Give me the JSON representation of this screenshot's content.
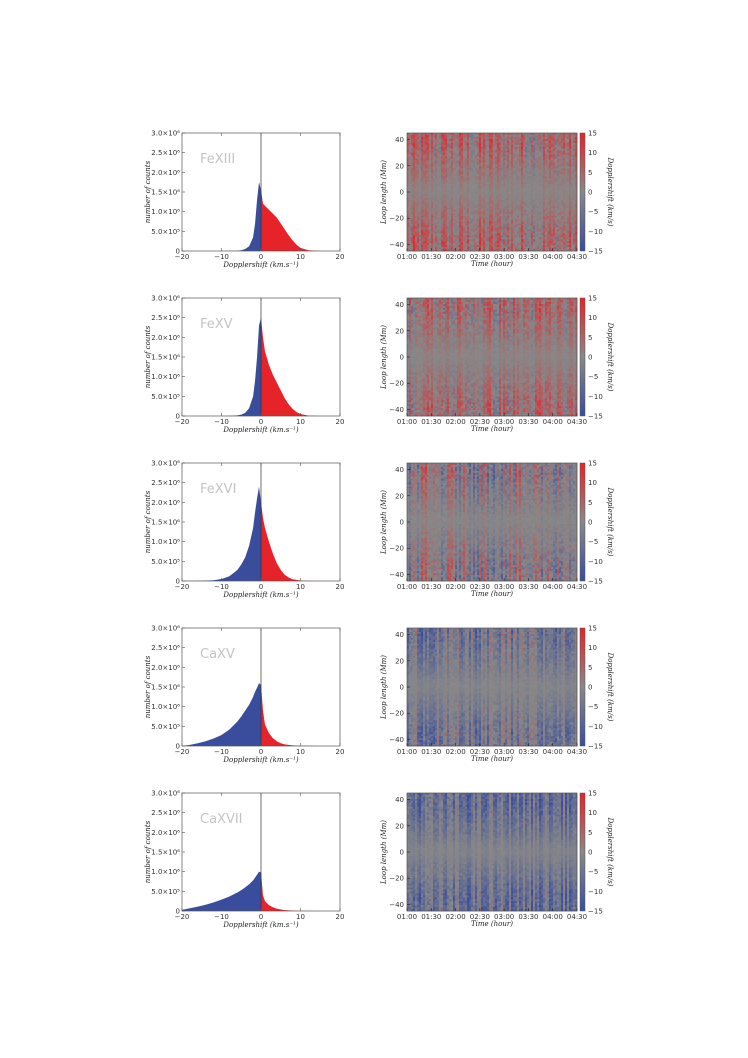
{
  "colors": {
    "blue": "#3a4d9c",
    "red": "#e52329",
    "gray": "#888888",
    "axis": "#555555"
  },
  "hist_common": {
    "xlabel": "Dopplershift (km.s⁻¹)",
    "ylabel": "number of counts",
    "xlim": [
      -20,
      20
    ],
    "ylim": [
      0,
      3000000
    ],
    "xticks": [
      "−20",
      "−10",
      "0",
      "10",
      "20"
    ],
    "yticks": [
      "0",
      "5.0×10⁵",
      "1.0×10⁶",
      "1.5×10⁶",
      "2.0×10⁶",
      "2.5×10⁶",
      "3.0×10⁶"
    ]
  },
  "map_common": {
    "xlabel": "Time (hour)",
    "ylabel": "Loop length (Mm)",
    "colorbar_label": "Dopplershift (km/s)",
    "xticks": [
      "01:00",
      "01:30",
      "02:00",
      "02:30",
      "03:00",
      "03:30",
      "04:00",
      "04:30"
    ],
    "yticks": [
      "40",
      "20",
      "0",
      "−20",
      "−40"
    ],
    "cbar_ticks": [
      "15",
      "10",
      "5",
      "0",
      "−5",
      "−10",
      "−15"
    ],
    "ylim": [
      -45,
      45
    ],
    "clim": [
      -15,
      15
    ]
  },
  "chart_data": [
    {
      "type": "area",
      "name": "FeXIII",
      "peak_x": -0.5,
      "peak": 1750000,
      "x": [
        -20,
        -15,
        -10,
        -8,
        -6,
        -5,
        -4,
        -3,
        -2,
        -1.5,
        -1,
        -0.5,
        0,
        0.5,
        1,
        2,
        3,
        4,
        5,
        6,
        7,
        8,
        9,
        10,
        12,
        15,
        20
      ],
      "counts": [
        0,
        0,
        0,
        2000,
        8000,
        20000,
        50000,
        120000,
        350000,
        700000,
        1300000,
        1750000,
        1550000,
        1200000,
        1150000,
        1050000,
        950000,
        850000,
        700000,
        550000,
        400000,
        270000,
        160000,
        80000,
        20000,
        0,
        0
      ]
    },
    {
      "type": "area",
      "name": "FeXV",
      "peak_x": -0.3,
      "peak": 2550000,
      "x": [
        -20,
        -15,
        -10,
        -8,
        -6,
        -5,
        -4,
        -3,
        -2,
        -1.5,
        -1,
        -0.5,
        0,
        0.5,
        1,
        2,
        3,
        4,
        5,
        6,
        7,
        8,
        9,
        10,
        12,
        15,
        20
      ],
      "counts": [
        0,
        0,
        0,
        3000,
        15000,
        35000,
        80000,
        200000,
        500000,
        900000,
        1500000,
        2300000,
        2500000,
        2000000,
        1650000,
        1300000,
        1050000,
        850000,
        650000,
        450000,
        300000,
        180000,
        100000,
        50000,
        10000,
        0,
        0
      ]
    },
    {
      "type": "area",
      "name": "FeXVI",
      "peak_x": -0.5,
      "peak": 2400000,
      "x": [
        -20,
        -15,
        -12,
        -10,
        -8,
        -6,
        -5,
        -4,
        -3,
        -2,
        -1.5,
        -1,
        -0.5,
        0,
        0.5,
        1,
        2,
        3,
        4,
        5,
        6,
        7,
        8,
        10,
        12,
        15,
        20
      ],
      "counts": [
        0,
        5000,
        20000,
        50000,
        120000,
        280000,
        420000,
        600000,
        900000,
        1350000,
        1750000,
        2100000,
        2400000,
        2000000,
        1600000,
        1350000,
        1000000,
        700000,
        450000,
        280000,
        160000,
        90000,
        45000,
        12000,
        3000,
        0,
        0
      ]
    },
    {
      "type": "area",
      "name": "CaXV",
      "peak_x": -0.3,
      "peak": 1650000,
      "x": [
        -20,
        -18,
        -16,
        -14,
        -12,
        -10,
        -8,
        -6,
        -5,
        -4,
        -3,
        -2,
        -1.5,
        -1,
        -0.5,
        0,
        0.5,
        1,
        2,
        3,
        4,
        5,
        6,
        8,
        10,
        15,
        20
      ],
      "counts": [
        0,
        30000,
        70000,
        120000,
        190000,
        280000,
        420000,
        620000,
        750000,
        900000,
        1050000,
        1250000,
        1380000,
        1480000,
        1600000,
        1550000,
        900000,
        550000,
        330000,
        200000,
        120000,
        70000,
        40000,
        15000,
        5000,
        0,
        0
      ]
    },
    {
      "type": "area",
      "name": "CaXVII",
      "peak_x": -0.2,
      "peak": 1050000,
      "x": [
        -20,
        -18,
        -16,
        -14,
        -12,
        -10,
        -8,
        -6,
        -5,
        -4,
        -3,
        -2,
        -1.5,
        -1,
        -0.5,
        0,
        0.5,
        1,
        2,
        3,
        4,
        5,
        6,
        8,
        10,
        15,
        20
      ],
      "counts": [
        30000,
        70000,
        110000,
        160000,
        220000,
        290000,
        370000,
        470000,
        530000,
        600000,
        680000,
        780000,
        850000,
        920000,
        1000000,
        980000,
        400000,
        250000,
        150000,
        95000,
        60000,
        38000,
        22000,
        9000,
        3000,
        0,
        0
      ]
    },
    {
      "type": "heatmap",
      "name": "FeXIII",
      "bias": 4,
      "noise": 7
    },
    {
      "type": "heatmap",
      "name": "FeXV",
      "bias": 3,
      "noise": 7
    },
    {
      "type": "heatmap",
      "name": "FeXVI",
      "bias": 0,
      "noise": 8
    },
    {
      "type": "heatmap",
      "name": "CaXV",
      "bias": -5,
      "noise": 7
    },
    {
      "type": "heatmap",
      "name": "CaXVII",
      "bias": -7,
      "noise": 7
    }
  ]
}
